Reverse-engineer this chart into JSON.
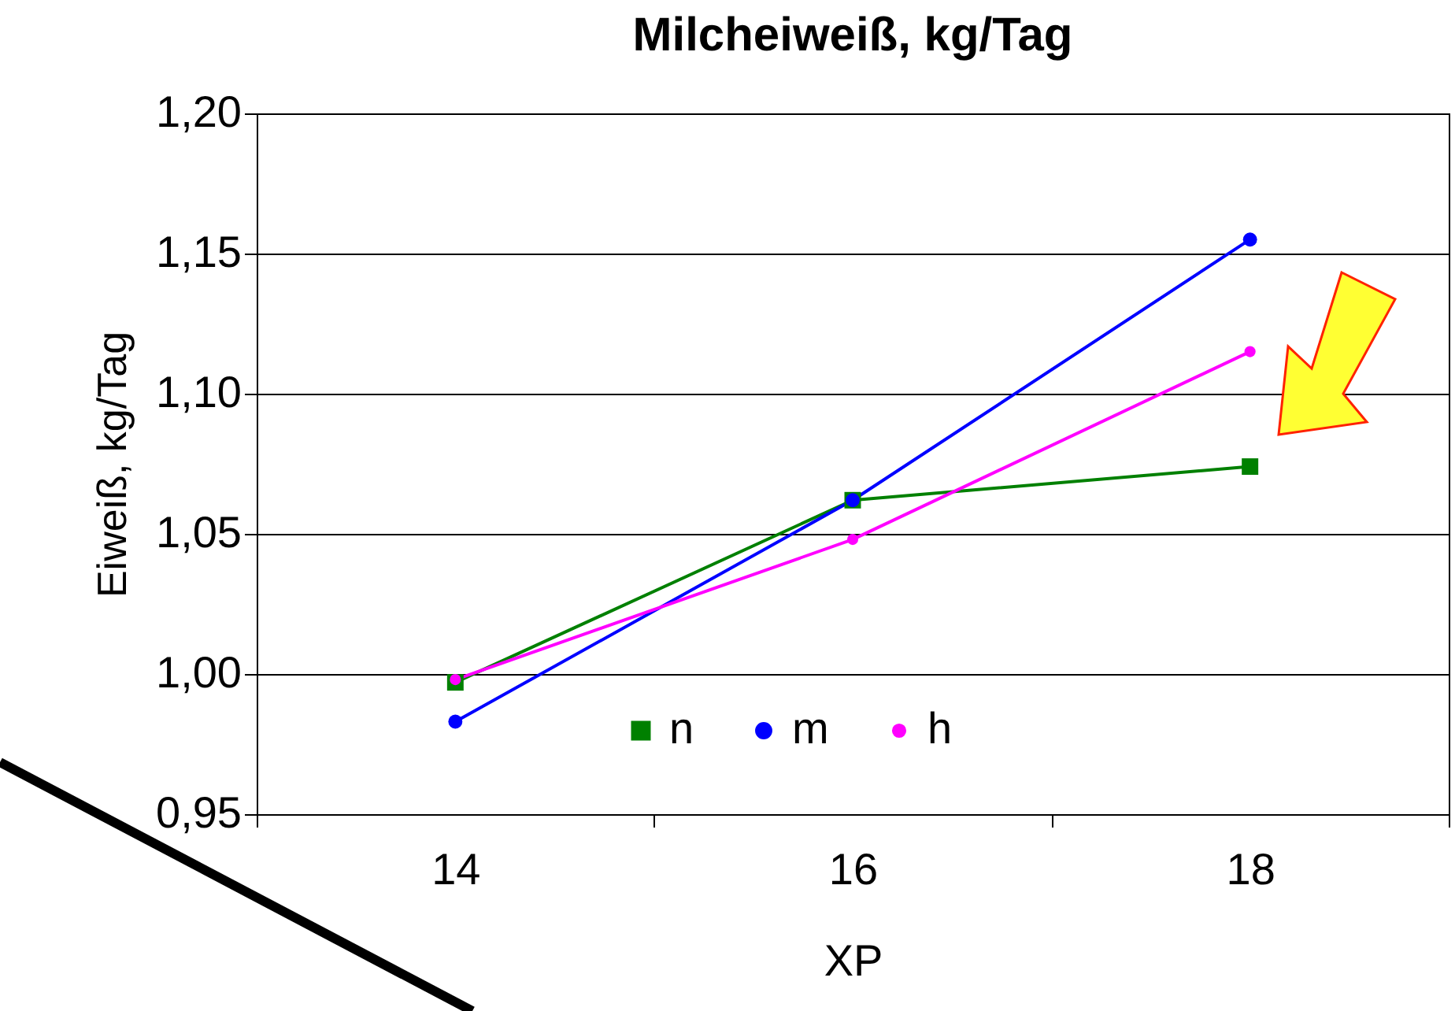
{
  "chart_data": {
    "type": "line",
    "title": "Milcheiweiß, kg/Tag",
    "xlabel": "XP",
    "ylabel": "Eiweiß, kg/Tag",
    "categories": [
      "14",
      "16",
      "18"
    ],
    "series": [
      {
        "name": "n",
        "color": "#008000",
        "marker": "square",
        "values": [
          0.997,
          1.062,
          1.074
        ]
      },
      {
        "name": "m",
        "color": "#0000ff",
        "marker": "circle",
        "values": [
          0.983,
          1.062,
          1.155
        ]
      },
      {
        "name": "h",
        "color": "#ff00ff",
        "marker": "circle",
        "values": [
          0.998,
          1.048,
          1.115
        ]
      }
    ],
    "ylim": [
      0.95,
      1.2
    ],
    "yticks": [
      {
        "value": 0.95,
        "label": "0,95"
      },
      {
        "value": 1.0,
        "label": "1,00"
      },
      {
        "value": 1.05,
        "label": "1,05"
      },
      {
        "value": 1.1,
        "label": "1,10"
      },
      {
        "value": 1.15,
        "label": "1,15"
      },
      {
        "value": 1.2,
        "label": "1,20"
      }
    ],
    "grid": "y",
    "legend": "bottom"
  }
}
